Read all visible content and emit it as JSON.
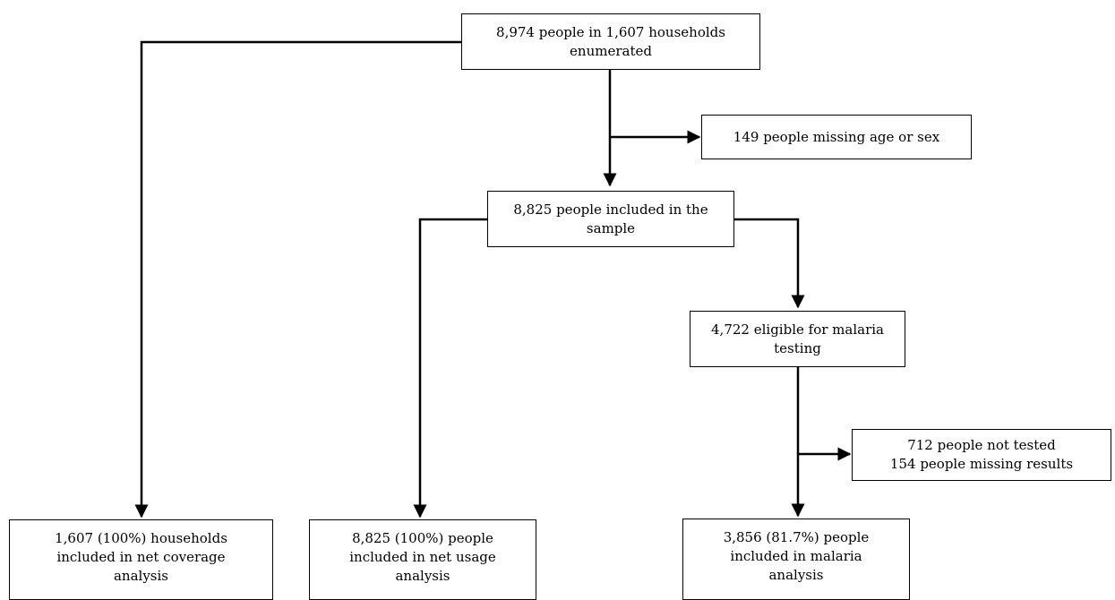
{
  "diagram": {
    "nodes": {
      "enumerated": {
        "lines": [
          "8,974 people in 1,607 households",
          "enumerated"
        ]
      },
      "missing_age_sex": {
        "lines": [
          "149 people missing age or sex"
        ]
      },
      "sample": {
        "lines": [
          "8,825 people included in the",
          "sample"
        ]
      },
      "eligible_malaria": {
        "lines": [
          "4,722 eligible for malaria",
          "testing"
        ]
      },
      "not_tested": {
        "lines": [
          "712 people not tested",
          "154 people missing results"
        ]
      },
      "net_coverage": {
        "lines": [
          "1,607 (100%) households",
          "included in net coverage",
          "analysis"
        ]
      },
      "net_usage": {
        "lines": [
          "8,825 (100%) people",
          "included in net usage",
          "analysis"
        ]
      },
      "malaria_analysis": {
        "lines": [
          "3,856 (81.7%) people",
          "included in malaria",
          "analysis"
        ]
      }
    },
    "edges": [
      {
        "from": "enumerated",
        "to": "net_coverage"
      },
      {
        "from": "enumerated",
        "to": "sample"
      },
      {
        "from": "enumerated",
        "to": "missing_age_sex"
      },
      {
        "from": "sample",
        "to": "net_usage"
      },
      {
        "from": "sample",
        "to": "eligible_malaria"
      },
      {
        "from": "eligible_malaria",
        "to": "malaria_analysis"
      },
      {
        "from": "eligible_malaria",
        "to": "not_tested"
      }
    ]
  }
}
